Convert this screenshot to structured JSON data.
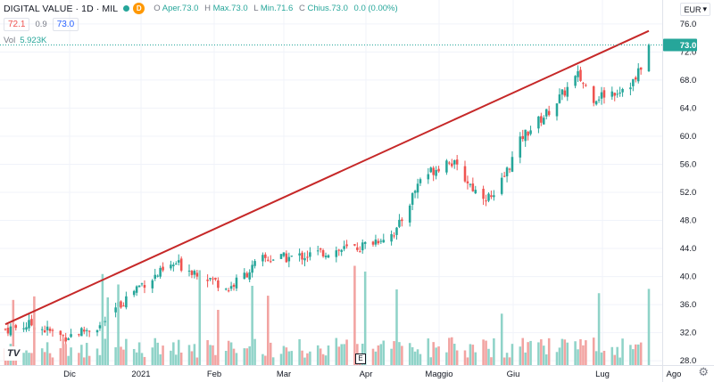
{
  "header": {
    "symbol": "DIGITAL VALUE · 1D · MIL",
    "badge": "D",
    "ohlc": [
      {
        "k": "O",
        "v": "Aper.73.0"
      },
      {
        "k": "H",
        "v": "Max.73.0"
      },
      {
        "k": "L",
        "v": "Min.71.6"
      },
      {
        "k": "C",
        "v": "Chius.73.0"
      },
      {
        "k": "",
        "v": "0.0 (0.00%)"
      }
    ],
    "bid": "72.1",
    "spread": "0.9",
    "ask": "73.0",
    "vol_label": "Vol",
    "vol_value": "5.923K",
    "currency": "EUR",
    "currency_caret": "▾",
    "logo": "TV",
    "event_marker": "E",
    "settings_icon": "⚙"
  },
  "colors": {
    "up": "#26a69a",
    "down": "#ef5350",
    "vol_up": "#8fd3c8",
    "vol_down": "#f2a3a1",
    "trendline": "#c62828",
    "last_price_bg": "#26a69a"
  },
  "chart_data": {
    "type": "candlestick",
    "title": "DIGITAL VALUE · 1D · MIL",
    "y_axis_ticks": [
      "76.0",
      "72.0",
      "68.0",
      "64.0",
      "60.0",
      "56.0",
      "52.0",
      "48.0",
      "44.0",
      "40.0",
      "36.0",
      "32.0",
      "28.0"
    ],
    "ylim": [
      26.5,
      77.5
    ],
    "x_axis_ticks": [
      "Dic",
      "2021",
      "Feb",
      "Mar",
      "Apr",
      "Maggio",
      "Giu",
      "Lug",
      "Ago"
    ],
    "last_price_label": "73.0",
    "price_path": [
      {
        "date": "2020-11-16",
        "close": 32.5
      },
      {
        "date": "2020-11-26",
        "close": 33.2
      },
      {
        "date": "2020-12-08",
        "close": 31.4
      },
      {
        "date": "2020-12-22",
        "close": 33.0
      },
      {
        "date": "2021-01-05",
        "close": 38.5
      },
      {
        "date": "2021-01-20",
        "close": 41.8
      },
      {
        "date": "2021-01-29",
        "close": 40.5
      },
      {
        "date": "2021-02-09",
        "close": 38.3
      },
      {
        "date": "2021-02-22",
        "close": 42.5
      },
      {
        "date": "2021-03-05",
        "close": 42.7
      },
      {
        "date": "2021-03-18",
        "close": 43.5
      },
      {
        "date": "2021-03-31",
        "close": 44.2
      },
      {
        "date": "2021-04-14",
        "close": 46.5
      },
      {
        "date": "2021-04-23",
        "close": 54.0
      },
      {
        "date": "2021-05-04",
        "close": 56.7
      },
      {
        "date": "2021-05-14",
        "close": 52.2
      },
      {
        "date": "2021-05-21",
        "close": 51.0
      },
      {
        "date": "2021-06-01",
        "close": 60.0
      },
      {
        "date": "2021-06-10",
        "close": 63.2
      },
      {
        "date": "2021-06-22",
        "close": 68.6
      },
      {
        "date": "2021-06-28",
        "close": 65.5
      },
      {
        "date": "2021-07-07",
        "close": 66.5
      },
      {
        "date": "2021-07-14",
        "close": 68.0
      },
      {
        "date": "2021-07-19",
        "close": 73.0
      }
    ],
    "trendline": [
      {
        "date": "2020-11-16",
        "value": 33.2
      },
      {
        "date": "2021-07-19",
        "value": 75.0
      }
    ],
    "volume_max": "approx. 39"
  }
}
